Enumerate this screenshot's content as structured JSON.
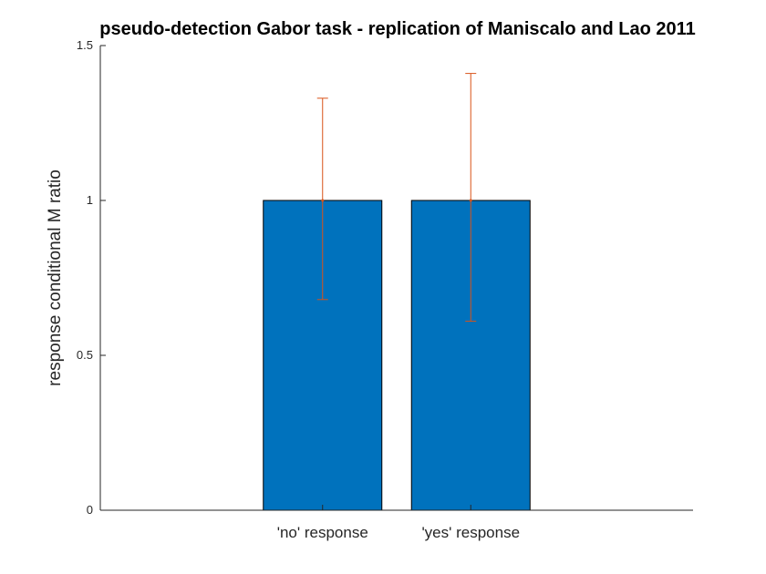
{
  "chart_data": {
    "type": "bar",
    "title": "pseudo-detection Gabor task - replication of Maniscalo and Lao 2011",
    "ylabel": "response conditional M ratio",
    "xlabel": "",
    "categories": [
      "'no' response",
      "'yes' response"
    ],
    "values": [
      1.0,
      1.0
    ],
    "error_bars": [
      {
        "lower": 0.68,
        "upper": 1.33
      },
      {
        "lower": 0.61,
        "upper": 1.41
      }
    ],
    "ylim": [
      0,
      1.5
    ],
    "yticks": [
      0,
      0.5,
      1,
      1.5
    ],
    "ytick_labels": [
      "0",
      "0.5",
      "1",
      "1.5"
    ],
    "grid": false,
    "colors": {
      "bar_fill": "#0072bd",
      "bar_edge": "#000000",
      "errorbar": "#d95319",
      "axis": "#262626"
    }
  }
}
